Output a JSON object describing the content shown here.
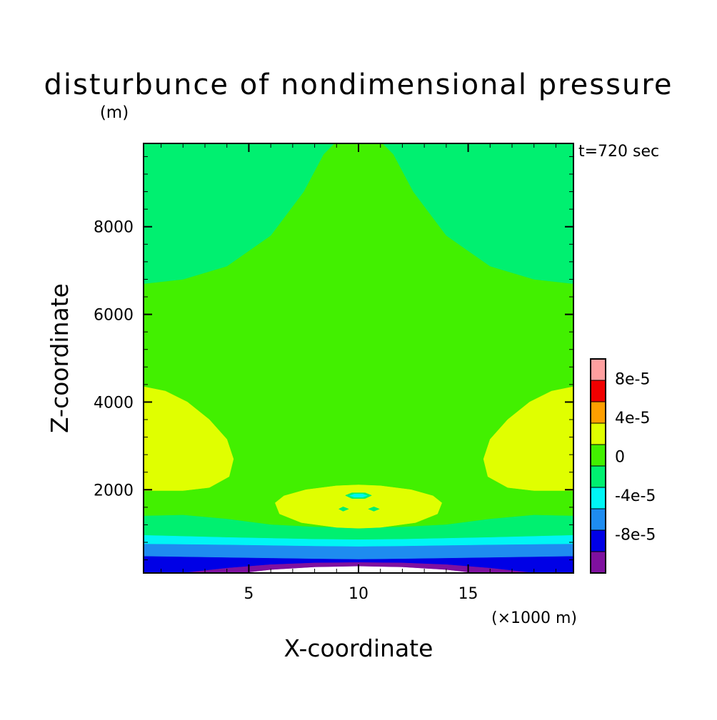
{
  "chart_data": {
    "type": "heatmap",
    "title": "disturbunce of nondimensional pressure",
    "ylabel": "Z-coordinate",
    "yunit": "(m)",
    "xlabel": "X-coordinate",
    "xunit": "(×1000 m)",
    "time_label": "t=720 sec",
    "xlim": [
      0.2,
      19.8
    ],
    "ylim": [
      100,
      9900
    ],
    "x_ticks": [
      5,
      10,
      15
    ],
    "x_tick_labels": [
      "5",
      "10",
      "15"
    ],
    "y_ticks": [
      2000,
      4000,
      6000,
      8000
    ],
    "y_tick_labels": [
      "2000",
      "4000",
      "6000",
      "8000"
    ],
    "x_minor_step": 1,
    "y_minor_step": 400,
    "grid": false,
    "colorbar": {
      "placement": "right",
      "levels": [
        -0.00012,
        -8e-05,
        -6e-05,
        -4e-05,
        -2e-05,
        0,
        2e-05,
        4e-05,
        6e-05,
        8e-05,
        0.0001
      ],
      "colors": [
        "#7f109f",
        "#0000e6",
        "#1e8cf0",
        "#00f5f5",
        "#00f070",
        "#42f000",
        "#e0ff00",
        "#ff9f00",
        "#f00000",
        "#ff9f9f"
      ],
      "tick_labels": [
        {
          "level": -8e-05,
          "label": "-8e-5"
        },
        {
          "level": -4e-05,
          "label": "-4e-5"
        },
        {
          "level": 0,
          "label": "0"
        },
        {
          "level": 4e-05,
          "label": "4e-5"
        },
        {
          "level": 8e-05,
          "label": "8e-5"
        }
      ]
    },
    "regions": [
      {
        "level_range": [
          0,
          2e-05
        ],
        "color": "#42f000",
        "polygon": [
          [
            0.2,
            100
          ],
          [
            19.8,
            100
          ],
          [
            19.8,
            9900
          ],
          [
            0.2,
            9900
          ]
        ]
      },
      {
        "level_range": [
          -2e-05,
          0
        ],
        "color": "#00f070",
        "polygon": [
          [
            0.2,
            6700
          ],
          [
            2,
            6800
          ],
          [
            4,
            7100
          ],
          [
            6,
            7800
          ],
          [
            7.5,
            8800
          ],
          [
            8.4,
            9650
          ],
          [
            8.9,
            9900
          ],
          [
            0.2,
            9900
          ]
        ]
      },
      {
        "level_range": [
          -2e-05,
          0
        ],
        "color": "#00f070",
        "polygon": [
          [
            11.1,
            9900
          ],
          [
            11.6,
            9650
          ],
          [
            12.5,
            8800
          ],
          [
            14,
            7800
          ],
          [
            16,
            7100
          ],
          [
            18,
            6800
          ],
          [
            19.8,
            6700
          ],
          [
            19.8,
            9900
          ]
        ]
      },
      {
        "level_range": [
          2e-05,
          4e-05
        ],
        "color": "#e0ff00",
        "polygon": [
          [
            0.2,
            4350
          ],
          [
            1.2,
            4250
          ],
          [
            2.2,
            4000
          ],
          [
            3.2,
            3600
          ],
          [
            4,
            3150
          ],
          [
            4.3,
            2700
          ],
          [
            4.1,
            2300
          ],
          [
            3.2,
            2050
          ],
          [
            2,
            1980
          ],
          [
            0.2,
            1980
          ]
        ]
      },
      {
        "level_range": [
          2e-05,
          4e-05
        ],
        "color": "#e0ff00",
        "polygon": [
          [
            19.8,
            4350
          ],
          [
            18.8,
            4250
          ],
          [
            17.8,
            4000
          ],
          [
            16.8,
            3600
          ],
          [
            16,
            3150
          ],
          [
            15.7,
            2700
          ],
          [
            15.9,
            2300
          ],
          [
            16.8,
            2050
          ],
          [
            18,
            1980
          ],
          [
            19.8,
            1980
          ]
        ]
      },
      {
        "level_range": [
          -2e-05,
          0
        ],
        "color": "#00f070",
        "polygon": [
          [
            0.2,
            100
          ],
          [
            0.2,
            1400
          ],
          [
            2,
            1420
          ],
          [
            4,
            1330
          ],
          [
            6,
            1200
          ],
          [
            8,
            1150
          ],
          [
            10,
            1130
          ],
          [
            12,
            1150
          ],
          [
            14,
            1200
          ],
          [
            16,
            1330
          ],
          [
            18,
            1420
          ],
          [
            19.8,
            1400
          ],
          [
            19.8,
            100
          ]
        ]
      },
      {
        "level_range": [
          2e-05,
          4e-05
        ],
        "color": "#e0ff00",
        "polygon": [
          [
            6.2,
            1700
          ],
          [
            6.6,
            1860
          ],
          [
            7.6,
            2000
          ],
          [
            9,
            2090
          ],
          [
            10,
            2110
          ],
          [
            11,
            2090
          ],
          [
            12.4,
            2000
          ],
          [
            13.4,
            1860
          ],
          [
            13.8,
            1700
          ],
          [
            13.6,
            1450
          ],
          [
            12.6,
            1250
          ],
          [
            11,
            1140
          ],
          [
            10,
            1120
          ],
          [
            9,
            1140
          ],
          [
            7.4,
            1250
          ],
          [
            6.4,
            1450
          ]
        ]
      },
      {
        "level_range": [
          -4e-05,
          -2e-05
        ],
        "color": "#00f5f5",
        "polygon": [
          [
            0.2,
            100
          ],
          [
            0.2,
            960
          ],
          [
            4,
            910
          ],
          [
            8,
            870
          ],
          [
            10,
            860
          ],
          [
            12,
            870
          ],
          [
            16,
            910
          ],
          [
            19.8,
            960
          ],
          [
            19.8,
            100
          ]
        ]
      },
      {
        "level_range": [
          -6e-05,
          -4e-05
        ],
        "color": "#1e8cf0",
        "polygon": [
          [
            0.2,
            100
          ],
          [
            0.2,
            760
          ],
          [
            4,
            740
          ],
          [
            8,
            710
          ],
          [
            10,
            700
          ],
          [
            12,
            710
          ],
          [
            16,
            740
          ],
          [
            19.8,
            760
          ],
          [
            19.8,
            100
          ]
        ]
      },
      {
        "level_range": [
          -8e-05,
          -6e-05
        ],
        "color": "#0000e6",
        "polygon": [
          [
            0.2,
            100
          ],
          [
            0.2,
            480
          ],
          [
            4,
            450
          ],
          [
            8,
            420
          ],
          [
            10,
            410
          ],
          [
            12,
            420
          ],
          [
            16,
            450
          ],
          [
            19.8,
            480
          ],
          [
            19.8,
            100
          ]
        ]
      },
      {
        "level_range": [
          -0.00012,
          -8e-05
        ],
        "color": "#7f109f",
        "polygon": [
          [
            2,
            100
          ],
          [
            4,
            210
          ],
          [
            6,
            290
          ],
          [
            8,
            330
          ],
          [
            10,
            340
          ],
          [
            12,
            330
          ],
          [
            14,
            290
          ],
          [
            16,
            210
          ],
          [
            18,
            100
          ]
        ]
      },
      {
        "level_range": [
          -0.00014,
          -0.00012
        ],
        "color": "#ffffff",
        "polygon": [
          [
            4.8,
            100
          ],
          [
            6,
            170
          ],
          [
            8,
            230
          ],
          [
            10,
            250
          ],
          [
            12,
            230
          ],
          [
            14,
            170
          ],
          [
            15.2,
            100
          ]
        ]
      },
      {
        "level_range": [
          -2e-05,
          0
        ],
        "color": "#00f070",
        "polygon": [
          [
            9.4,
            1870
          ],
          [
            9.7,
            1930
          ],
          [
            10.3,
            1930
          ],
          [
            10.6,
            1870
          ],
          [
            10.3,
            1800
          ],
          [
            9.7,
            1800
          ]
        ]
      },
      {
        "level_range": [
          -4e-05,
          -2e-05
        ],
        "color": "#00f5f5",
        "polygon": [
          [
            9.6,
            1865
          ],
          [
            9.8,
            1900
          ],
          [
            10.2,
            1900
          ],
          [
            10.4,
            1865
          ],
          [
            10.2,
            1830
          ],
          [
            9.8,
            1830
          ]
        ]
      },
      {
        "level_range": [
          -2e-05,
          0
        ],
        "color": "#00f070",
        "polygon": [
          [
            9.1,
            1560
          ],
          [
            9.3,
            1610
          ],
          [
            9.55,
            1560
          ],
          [
            9.3,
            1510
          ]
        ]
      },
      {
        "level_range": [
          -2e-05,
          0
        ],
        "color": "#00f070",
        "polygon": [
          [
            10.45,
            1560
          ],
          [
            10.7,
            1610
          ],
          [
            10.95,
            1560
          ],
          [
            10.7,
            1510
          ]
        ]
      }
    ]
  }
}
